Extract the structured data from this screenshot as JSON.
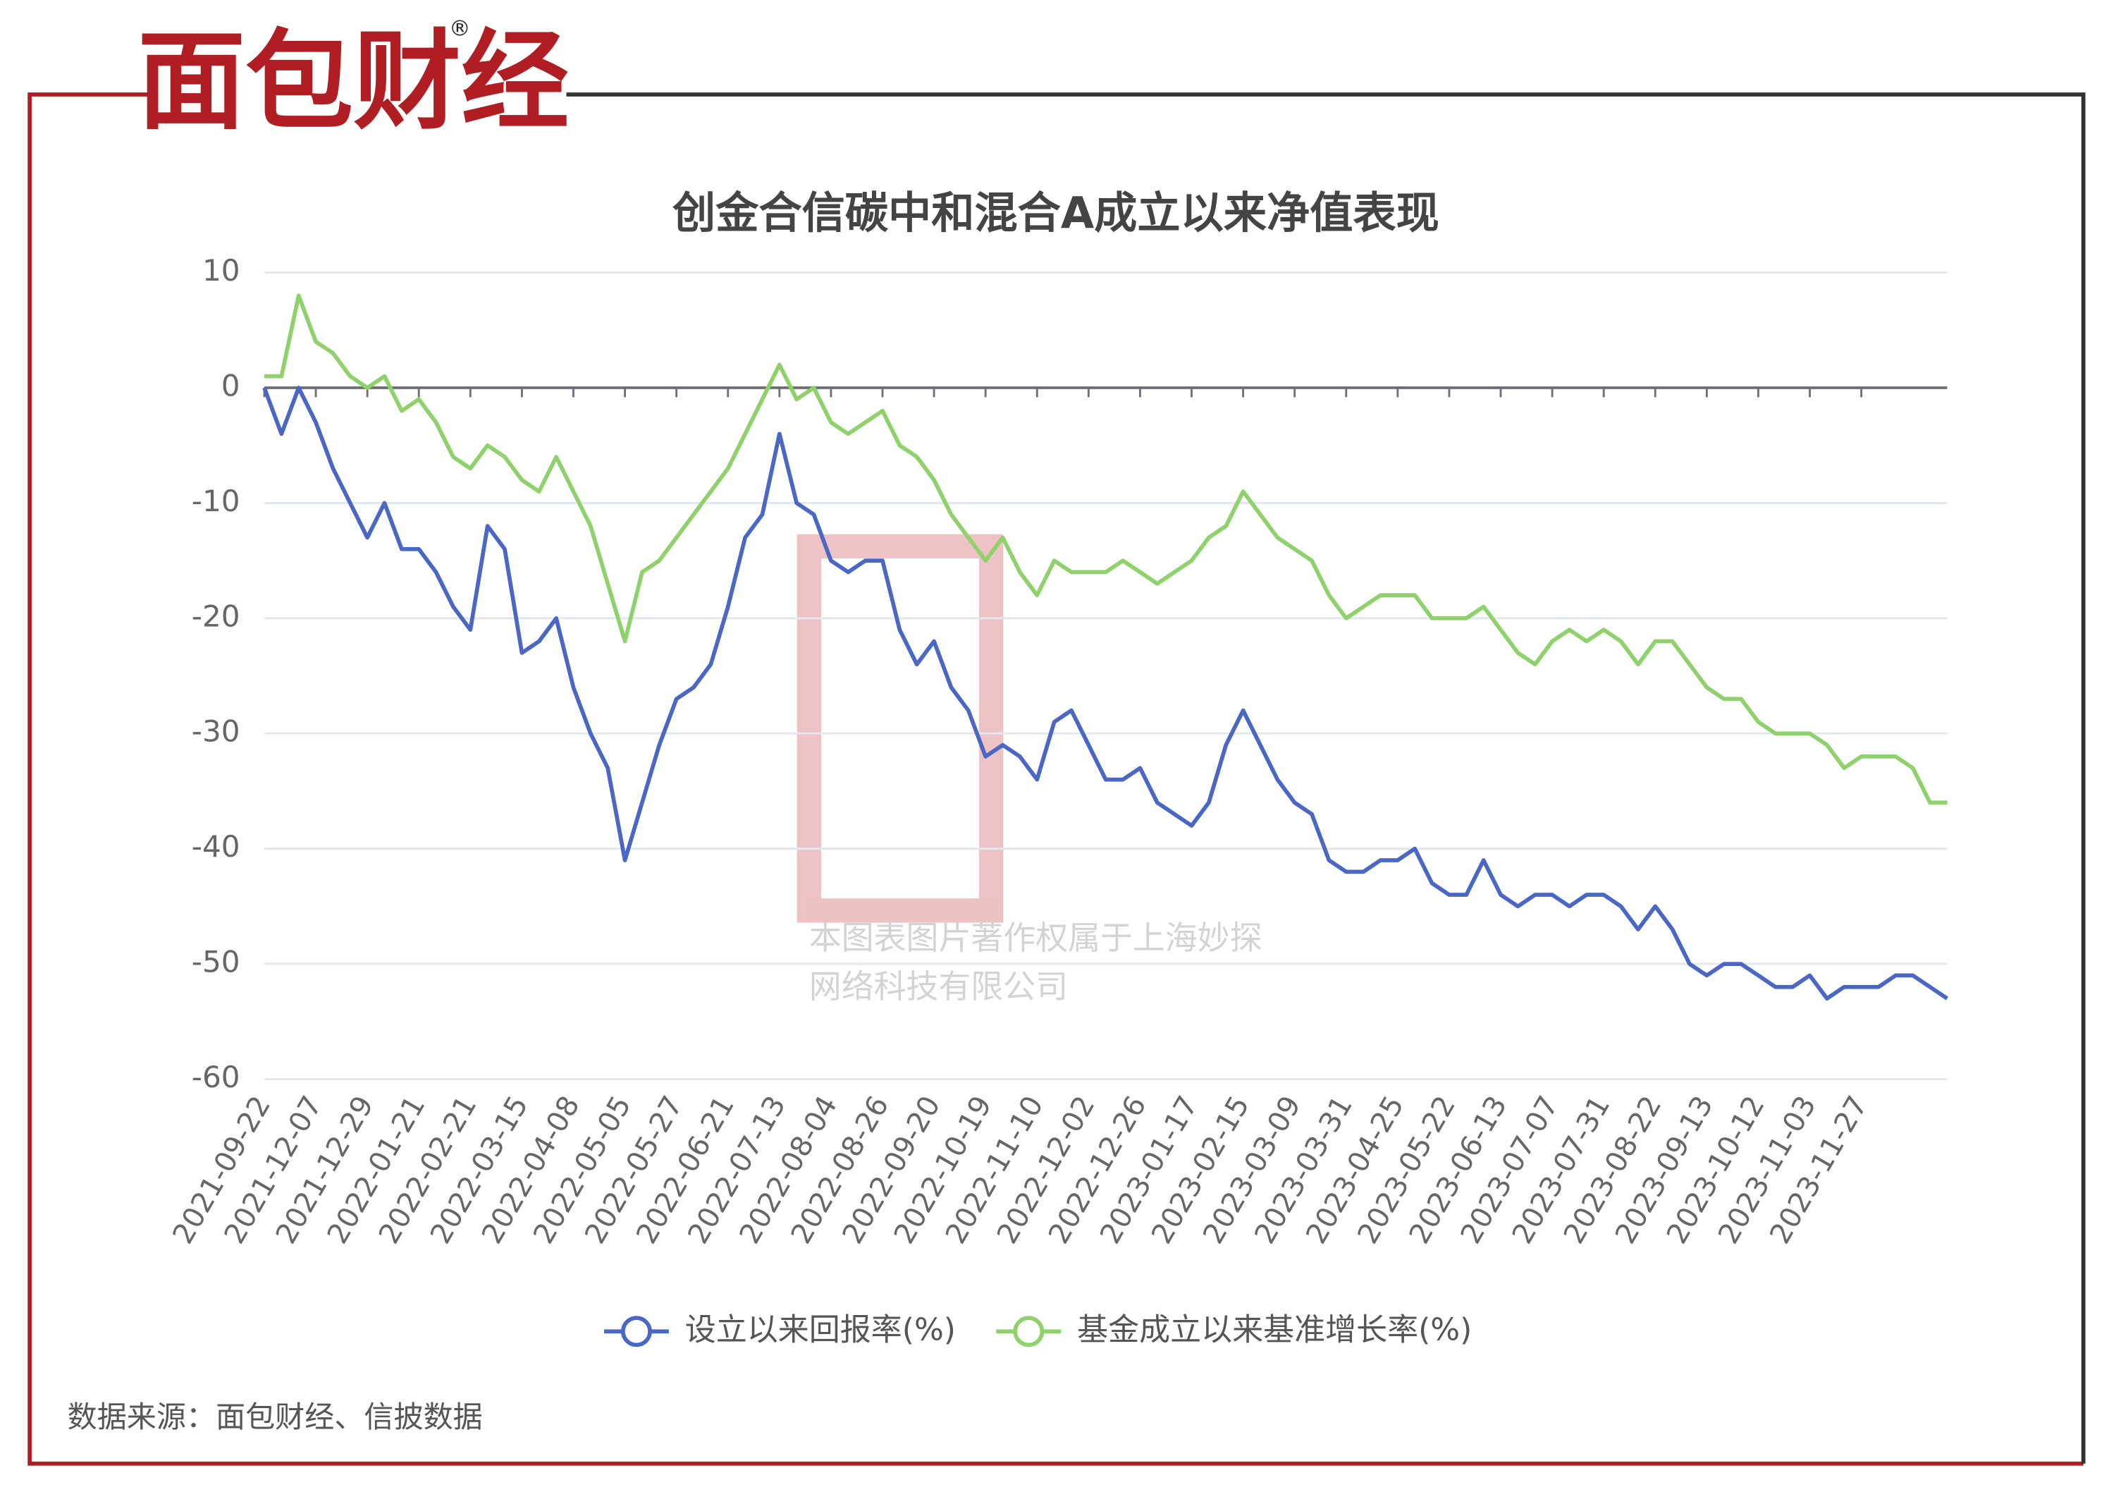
{
  "brand": {
    "logo": "面包财经",
    "registered": "®"
  },
  "watermark": [
    "本图表图片著作权属于上海妙探",
    "网络科技有限公司"
  ],
  "source": "数据来源：面包财经、信披数据",
  "chart_data": {
    "type": "line",
    "title": "创金合信碳中和混合A成立以来净值表现",
    "categories": [
      "2021-09-22",
      null,
      null,
      "2021-12-07",
      null,
      null,
      "2021-12-29",
      null,
      null,
      "2022-01-21",
      null,
      null,
      "2022-02-21",
      null,
      null,
      "2022-03-15",
      null,
      null,
      "2022-04-08",
      null,
      null,
      "2022-05-05",
      null,
      null,
      "2022-05-27",
      null,
      null,
      "2022-06-21",
      null,
      null,
      "2022-07-13",
      null,
      null,
      "2022-08-04",
      null,
      null,
      "2022-08-26",
      null,
      null,
      "2022-09-20",
      null,
      null,
      "2022-10-19",
      null,
      null,
      "2022-11-10",
      null,
      null,
      "2022-12-02",
      null,
      null,
      "2022-12-26",
      null,
      null,
      "2023-01-17",
      null,
      null,
      "2023-02-15",
      null,
      null,
      "2023-03-09",
      null,
      null,
      "2023-03-31",
      null,
      null,
      "2023-04-25",
      null,
      null,
      "2023-05-22",
      null,
      null,
      "2023-06-13",
      null,
      null,
      "2023-07-07",
      null,
      null,
      "2023-07-31",
      null,
      null,
      "2023-08-22",
      null,
      null,
      "2023-09-13",
      null,
      null,
      "2023-10-12",
      null,
      null,
      "2023-11-03",
      null,
      null,
      "2023-11-27",
      null,
      null,
      null,
      null,
      null
    ],
    "series": [
      {
        "name": "设立以来回报率(%)",
        "color": "#4a67c6",
        "values": [
          0,
          -4,
          0,
          -3,
          -7,
          -10,
          -13,
          -10,
          -14,
          -14,
          -16,
          -19,
          -21,
          -12,
          -14,
          -23,
          -22,
          -20,
          -26,
          -30,
          -33,
          -41,
          -36,
          -31,
          -27,
          -26,
          -24,
          -19,
          -13,
          -11,
          -4,
          -10,
          -11,
          -15,
          -16,
          -15,
          -15,
          -21,
          -24,
          -22,
          -26,
          -28,
          -32,
          -31,
          -32,
          -34,
          -29,
          -28,
          -31,
          -34,
          -34,
          -33,
          -36,
          -37,
          -38,
          -36,
          -31,
          -28,
          -31,
          -34,
          -36,
          -37,
          -41,
          -42,
          -42,
          -41,
          -41,
          -40,
          -43,
          -44,
          -44,
          -41,
          -44,
          -45,
          -44,
          -44,
          -45,
          -44,
          -44,
          -45,
          -47,
          -45,
          -47,
          -50,
          -51,
          -50,
          -50,
          -51,
          -52,
          -52,
          -51,
          -53,
          -52,
          -52,
          -52,
          -51,
          -51,
          -52,
          -53
        ]
      },
      {
        "name": "基金成立以来基准增长率(%)",
        "color": "#8fd16a",
        "values": [
          1,
          1,
          8,
          4,
          3,
          1,
          0,
          1,
          -2,
          -1,
          -3,
          -6,
          -7,
          -5,
          -6,
          -8,
          -9,
          -6,
          -9,
          -12,
          -17,
          -22,
          -16,
          -15,
          -13,
          -11,
          -9,
          -7,
          -4,
          -1,
          2,
          -1,
          0,
          -3,
          -4,
          -3,
          -2,
          -5,
          -6,
          -8,
          -11,
          -13,
          -15,
          -13,
          -16,
          -18,
          -15,
          -16,
          -16,
          -16,
          -15,
          -16,
          -17,
          -16,
          -15,
          -13,
          -12,
          -9,
          -11,
          -13,
          -14,
          -15,
          -18,
          -20,
          -19,
          -18,
          -18,
          -18,
          -20,
          -20,
          -20,
          -19,
          -21,
          -23,
          -24,
          -22,
          -21,
          -22,
          -21,
          -22,
          -24,
          -22,
          -22,
          -24,
          -26,
          -27,
          -27,
          -29,
          -30,
          -30,
          -30,
          -31,
          -33,
          -32,
          -32,
          -32,
          -33,
          -36,
          -36
        ]
      }
    ],
    "ylim": [
      -60,
      10
    ],
    "yticks": [
      -60,
      -50,
      -40,
      -30,
      -20,
      -10,
      0,
      10
    ],
    "grid": true,
    "legend": "bottom"
  }
}
